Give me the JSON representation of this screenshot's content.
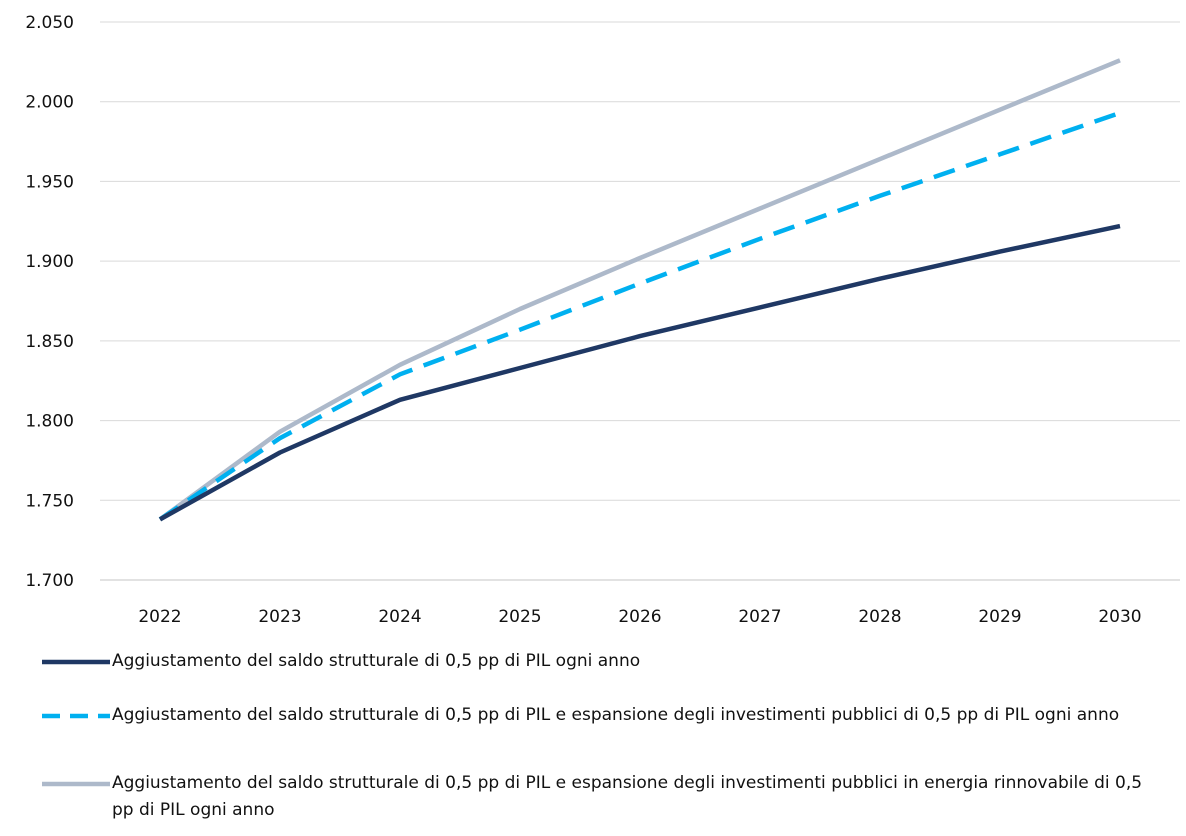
{
  "chart_data": {
    "type": "line",
    "title": "",
    "xlabel": "",
    "ylabel": "",
    "x": [
      "2022",
      "2023",
      "2024",
      "2025",
      "2026",
      "2027",
      "2028",
      "2029",
      "2030"
    ],
    "ylim": [
      1700,
      2050
    ],
    "yticks": [
      1700,
      1750,
      1800,
      1850,
      1900,
      1950,
      2000,
      2050
    ],
    "ytick_labels": [
      "1.700",
      "1.750",
      "1.800",
      "1.850",
      "1.900",
      "1.950",
      "2.000",
      "2.050"
    ],
    "grid": "horizontal",
    "legend_position": "bottom",
    "series": [
      {
        "name": "Aggiustamento del saldo strutturale di 0,5 pp di PIL ogni anno",
        "values": [
          1738,
          1780,
          1813,
          1833,
          1853,
          1871,
          1889,
          1906,
          1922
        ],
        "color": "#1f3864",
        "style": "solid"
      },
      {
        "name": "Aggiustamento del saldo strutturale di 0,5 pp di PIL e espansione degli investimenti pubblici di 0,5 pp di PIL ogni anno",
        "values": [
          1738,
          1789,
          1829,
          1857,
          1886,
          1914,
          1941,
          1967,
          1993
        ],
        "color": "#00b0f0",
        "style": "dashed"
      },
      {
        "name": "Aggiustamento del saldo strutturale di 0,5 pp di PIL e espansione degli investimenti pubblici in energia rinnovabile di 0,5 pp di PIL ogni anno",
        "values": [
          1738,
          1793,
          1835,
          1870,
          1902,
          1933,
          1964,
          1995,
          2026
        ],
        "color": "#adb9ca",
        "style": "solid"
      }
    ]
  }
}
